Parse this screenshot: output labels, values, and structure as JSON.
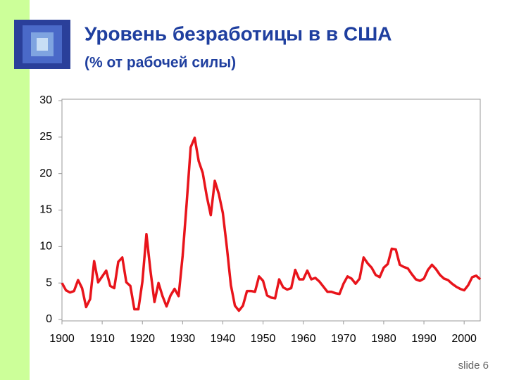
{
  "chart_data": {
    "type": "line",
    "title": "Уровень безработицы в в США",
    "subtitle": "(% от рабочей силы)",
    "footer": "slide 6",
    "x": [
      1900,
      1901,
      1902,
      1903,
      1904,
      1905,
      1906,
      1907,
      1908,
      1909,
      1910,
      1911,
      1912,
      1913,
      1914,
      1915,
      1916,
      1917,
      1918,
      1919,
      1920,
      1921,
      1922,
      1923,
      1924,
      1925,
      1926,
      1927,
      1928,
      1929,
      1930,
      1931,
      1932,
      1933,
      1934,
      1935,
      1936,
      1937,
      1938,
      1939,
      1940,
      1941,
      1942,
      1943,
      1944,
      1945,
      1946,
      1947,
      1948,
      1949,
      1950,
      1951,
      1952,
      1953,
      1954,
      1955,
      1956,
      1957,
      1958,
      1959,
      1960,
      1961,
      1962,
      1963,
      1964,
      1965,
      1966,
      1967,
      1968,
      1969,
      1970,
      1971,
      1972,
      1973,
      1974,
      1975,
      1976,
      1977,
      1978,
      1979,
      1980,
      1981,
      1982,
      1983,
      1984,
      1985,
      1986,
      1987,
      1988,
      1989,
      1990,
      1991,
      1992,
      1993,
      1994,
      1995,
      1996,
      1997,
      1998,
      1999,
      2000,
      2001,
      2002,
      2003,
      2004
    ],
    "series": [
      {
        "name": "Уровень безработицы",
        "color": "#e8141b",
        "values": [
          5.0,
          4.0,
          3.7,
          3.9,
          5.4,
          4.3,
          1.7,
          2.8,
          8.0,
          5.1,
          5.9,
          6.7,
          4.6,
          4.3,
          7.9,
          8.5,
          5.1,
          4.6,
          1.4,
          1.4,
          5.2,
          11.7,
          6.7,
          2.4,
          5.0,
          3.2,
          1.8,
          3.3,
          4.2,
          3.2,
          8.7,
          15.9,
          23.6,
          24.9,
          21.7,
          20.1,
          16.9,
          14.3,
          19.0,
          17.2,
          14.6,
          9.9,
          4.7,
          1.9,
          1.2,
          1.9,
          3.9,
          3.9,
          3.8,
          5.9,
          5.3,
          3.3,
          3.0,
          2.9,
          5.5,
          4.4,
          4.1,
          4.3,
          6.8,
          5.5,
          5.5,
          6.7,
          5.5,
          5.7,
          5.2,
          4.5,
          3.8,
          3.8,
          3.6,
          3.5,
          4.9,
          5.9,
          5.6,
          4.9,
          5.6,
          8.5,
          7.7,
          7.1,
          6.1,
          5.8,
          7.1,
          7.6,
          9.7,
          9.6,
          7.5,
          7.2,
          7.0,
          6.2,
          5.5,
          5.3,
          5.6,
          6.8,
          7.5,
          6.9,
          6.1,
          5.6,
          5.4,
          4.9,
          4.5,
          4.2,
          4.0,
          4.7,
          5.8,
          6.0,
          5.5
        ]
      }
    ],
    "xlim": [
      1900,
      2004
    ],
    "xticks": [
      1900,
      1910,
      1920,
      1930,
      1940,
      1950,
      1960,
      1970,
      1980,
      1990,
      2000
    ],
    "ylim": [
      0,
      30
    ],
    "yticks": [
      0,
      5,
      10,
      15,
      20,
      25,
      30
    ],
    "grid": false
  }
}
